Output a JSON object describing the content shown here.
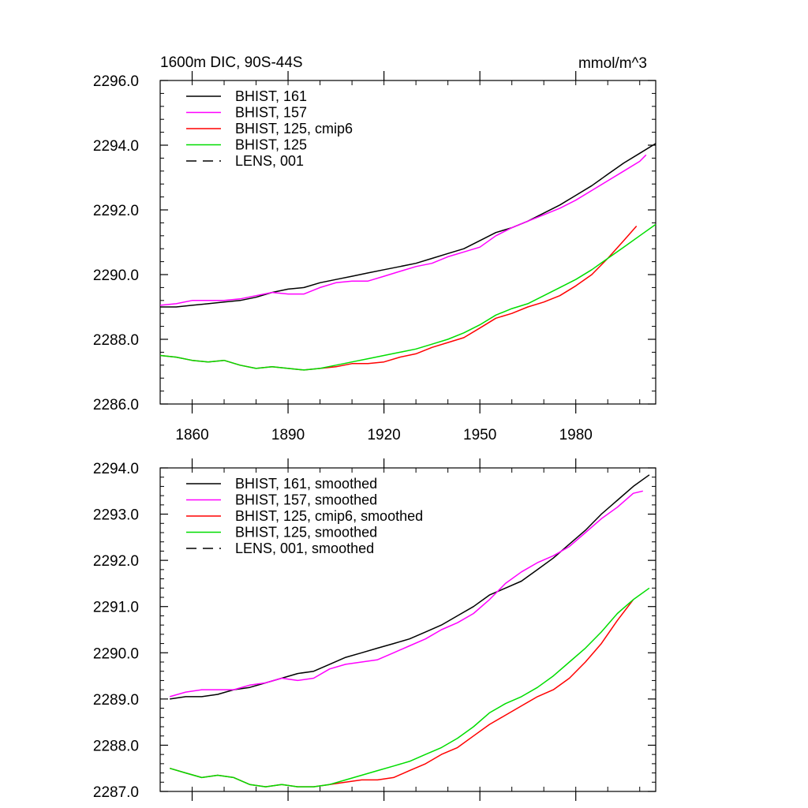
{
  "chart_data": [
    {
      "type": "line",
      "title": "1600m DIC, 90S-44S",
      "units": "mmol/m^3",
      "xlabel": "",
      "ylabel": "",
      "xlim": [
        1850,
        2005
      ],
      "ylim": [
        2286.0,
        2296.0
      ],
      "xticks": [
        1860,
        1890,
        1920,
        1950,
        1980
      ],
      "xtick_labels": [
        "1860",
        "1890",
        "1920",
        "1950",
        "1980"
      ],
      "yticks": [
        2286.0,
        2288.0,
        2290.0,
        2292.0,
        2294.0,
        2296.0
      ],
      "ytick_labels": [
        "2286.0",
        "2288.0",
        "2290.0",
        "2292.0",
        "2294.0",
        "2296.0"
      ],
      "grid": false,
      "legend_position": "top-left",
      "series": [
        {
          "name": "BHIST, 161",
          "color": "#000000",
          "dash": "solid",
          "x": [
            1850,
            1855,
            1860,
            1865,
            1870,
            1875,
            1880,
            1885,
            1890,
            1895,
            1900,
            1905,
            1910,
            1915,
            1920,
            1925,
            1930,
            1935,
            1940,
            1945,
            1950,
            1955,
            1960,
            1965,
            1970,
            1975,
            1980,
            1985,
            1990,
            1995,
            2000,
            2005
          ],
          "y": [
            2289.0,
            2289.0,
            2289.05,
            2289.1,
            2289.15,
            2289.2,
            2289.3,
            2289.45,
            2289.55,
            2289.6,
            2289.75,
            2289.85,
            2289.95,
            2290.05,
            2290.15,
            2290.25,
            2290.35,
            2290.5,
            2290.65,
            2290.8,
            2291.05,
            2291.3,
            2291.45,
            2291.65,
            2291.9,
            2292.15,
            2292.45,
            2292.75,
            2293.1,
            2293.45,
            2293.75,
            2294.05
          ]
        },
        {
          "name": "BHIST, 157",
          "color": "#ff00ff",
          "dash": "solid",
          "x": [
            1850,
            1855,
            1860,
            1865,
            1870,
            1875,
            1880,
            1885,
            1890,
            1895,
            1900,
            1905,
            1910,
            1915,
            1920,
            1925,
            1930,
            1935,
            1940,
            1945,
            1950,
            1955,
            1960,
            1965,
            1970,
            1975,
            1980,
            1985,
            1990,
            1995,
            2000,
            2002
          ],
          "y": [
            2289.05,
            2289.1,
            2289.2,
            2289.2,
            2289.2,
            2289.25,
            2289.35,
            2289.45,
            2289.4,
            2289.4,
            2289.6,
            2289.75,
            2289.8,
            2289.8,
            2289.95,
            2290.1,
            2290.25,
            2290.35,
            2290.55,
            2290.7,
            2290.85,
            2291.2,
            2291.45,
            2291.65,
            2291.85,
            2292.05,
            2292.3,
            2292.6,
            2292.9,
            2293.2,
            2293.5,
            2293.7
          ]
        },
        {
          "name": "BHIST, 125, cmip6",
          "color": "#ff0000",
          "dash": "solid",
          "x": [
            1850,
            1855,
            1860,
            1865,
            1870,
            1875,
            1880,
            1885,
            1890,
            1895,
            1900,
            1905,
            1910,
            1915,
            1920,
            1925,
            1930,
            1935,
            1940,
            1945,
            1950,
            1955,
            1960,
            1965,
            1970,
            1975,
            1980,
            1985,
            1990,
            1995,
            1999
          ],
          "y": [
            2287.5,
            2287.45,
            2287.35,
            2287.3,
            2287.35,
            2287.2,
            2287.1,
            2287.15,
            2287.1,
            2287.05,
            2287.1,
            2287.15,
            2287.25,
            2287.25,
            2287.3,
            2287.45,
            2287.55,
            2287.75,
            2287.9,
            2288.05,
            2288.35,
            2288.65,
            2288.8,
            2289.0,
            2289.15,
            2289.35,
            2289.65,
            2290.0,
            2290.5,
            2291.05,
            2291.5
          ]
        },
        {
          "name": "BHIST, 125",
          "color": "#00dd00",
          "dash": "solid",
          "x": [
            1850,
            1855,
            1860,
            1865,
            1870,
            1875,
            1880,
            1885,
            1890,
            1895,
            1900,
            1905,
            1910,
            1915,
            1920,
            1925,
            1930,
            1935,
            1940,
            1945,
            1950,
            1955,
            1960,
            1965,
            1970,
            1975,
            1980,
            1985,
            1990,
            1995,
            2000,
            2005
          ],
          "y": [
            2287.5,
            2287.45,
            2287.35,
            2287.3,
            2287.35,
            2287.2,
            2287.1,
            2287.15,
            2287.1,
            2287.05,
            2287.1,
            2287.2,
            2287.3,
            2287.4,
            2287.5,
            2287.6,
            2287.7,
            2287.85,
            2288.0,
            2288.2,
            2288.45,
            2288.75,
            2288.95,
            2289.1,
            2289.35,
            2289.6,
            2289.85,
            2290.15,
            2290.5,
            2290.85,
            2291.2,
            2291.55
          ]
        },
        {
          "name": "LENS, 001",
          "color": "#000000",
          "dash": "dashed",
          "x": [],
          "y": []
        }
      ]
    },
    {
      "type": "line",
      "title": "",
      "xlabel": "",
      "ylabel": "",
      "xlim": [
        1850,
        2005
      ],
      "ylim": [
        2287.0,
        2294.0
      ],
      "xticks": [
        1860,
        1890,
        1920,
        1950,
        1980
      ],
      "xtick_labels": [],
      "yticks": [
        2287.0,
        2288.0,
        2289.0,
        2290.0,
        2291.0,
        2292.0,
        2293.0,
        2294.0
      ],
      "ytick_labels": [
        "2287.0",
        "2288.0",
        "2289.0",
        "2290.0",
        "2291.0",
        "2292.0",
        "2293.0",
        "2294.0"
      ],
      "grid": false,
      "legend_position": "top-left",
      "series": [
        {
          "name": "BHIST, 161, smoothed",
          "color": "#000000",
          "dash": "solid",
          "x": [
            1853,
            1858,
            1863,
            1868,
            1873,
            1878,
            1883,
            1888,
            1893,
            1898,
            1903,
            1908,
            1913,
            1918,
            1923,
            1928,
            1933,
            1938,
            1943,
            1948,
            1953,
            1958,
            1963,
            1968,
            1973,
            1978,
            1983,
            1988,
            1993,
            1998,
            2003
          ],
          "y": [
            2289.0,
            2289.05,
            2289.05,
            2289.1,
            2289.2,
            2289.25,
            2289.35,
            2289.45,
            2289.55,
            2289.6,
            2289.75,
            2289.9,
            2290.0,
            2290.1,
            2290.2,
            2290.3,
            2290.45,
            2290.6,
            2290.8,
            2291.0,
            2291.25,
            2291.4,
            2291.55,
            2291.8,
            2292.05,
            2292.35,
            2292.65,
            2293.0,
            2293.3,
            2293.6,
            2293.85
          ]
        },
        {
          "name": "BHIST, 157, smoothed",
          "color": "#ff00ff",
          "dash": "solid",
          "x": [
            1853,
            1858,
            1863,
            1868,
            1873,
            1878,
            1883,
            1888,
            1893,
            1898,
            1903,
            1908,
            1913,
            1918,
            1923,
            1928,
            1933,
            1938,
            1943,
            1948,
            1953,
            1958,
            1963,
            1968,
            1973,
            1978,
            1983,
            1988,
            1993,
            1998,
            2001
          ],
          "y": [
            2289.05,
            2289.15,
            2289.2,
            2289.2,
            2289.2,
            2289.3,
            2289.35,
            2289.45,
            2289.4,
            2289.45,
            2289.65,
            2289.75,
            2289.8,
            2289.85,
            2290.0,
            2290.15,
            2290.3,
            2290.5,
            2290.65,
            2290.85,
            2291.15,
            2291.5,
            2291.75,
            2291.95,
            2292.1,
            2292.3,
            2292.6,
            2292.9,
            2293.15,
            2293.45,
            2293.5
          ]
        },
        {
          "name": "BHIST, 125, cmip6, smoothed",
          "color": "#ff0000",
          "dash": "solid",
          "x": [
            1853,
            1858,
            1863,
            1868,
            1873,
            1878,
            1883,
            1888,
            1893,
            1898,
            1903,
            1908,
            1913,
            1918,
            1923,
            1928,
            1933,
            1938,
            1943,
            1948,
            1953,
            1958,
            1963,
            1968,
            1973,
            1978,
            1983,
            1988,
            1993,
            1998
          ],
          "y": [
            2287.5,
            2287.4,
            2287.3,
            2287.35,
            2287.3,
            2287.15,
            2287.1,
            2287.15,
            2287.1,
            2287.1,
            2287.15,
            2287.2,
            2287.25,
            2287.25,
            2287.3,
            2287.45,
            2287.6,
            2287.8,
            2287.95,
            2288.2,
            2288.45,
            2288.65,
            2288.85,
            2289.05,
            2289.2,
            2289.45,
            2289.8,
            2290.2,
            2290.7,
            2291.15
          ]
        },
        {
          "name": "BHIST, 125, smoothed",
          "color": "#00dd00",
          "dash": "solid",
          "x": [
            1853,
            1858,
            1863,
            1868,
            1873,
            1878,
            1883,
            1888,
            1893,
            1898,
            1903,
            1908,
            1913,
            1918,
            1923,
            1928,
            1933,
            1938,
            1943,
            1948,
            1953,
            1958,
            1963,
            1968,
            1973,
            1978,
            1983,
            1988,
            1993,
            1998,
            2003
          ],
          "y": [
            2287.5,
            2287.4,
            2287.3,
            2287.35,
            2287.3,
            2287.15,
            2287.1,
            2287.15,
            2287.1,
            2287.1,
            2287.15,
            2287.25,
            2287.35,
            2287.45,
            2287.55,
            2287.65,
            2287.8,
            2287.95,
            2288.15,
            2288.4,
            2288.7,
            2288.9,
            2289.05,
            2289.25,
            2289.5,
            2289.8,
            2290.1,
            2290.45,
            2290.85,
            2291.15,
            2291.4
          ]
        },
        {
          "name": "LENS, 001, smoothed",
          "color": "#000000",
          "dash": "dashed",
          "x": [],
          "y": []
        }
      ]
    }
  ]
}
